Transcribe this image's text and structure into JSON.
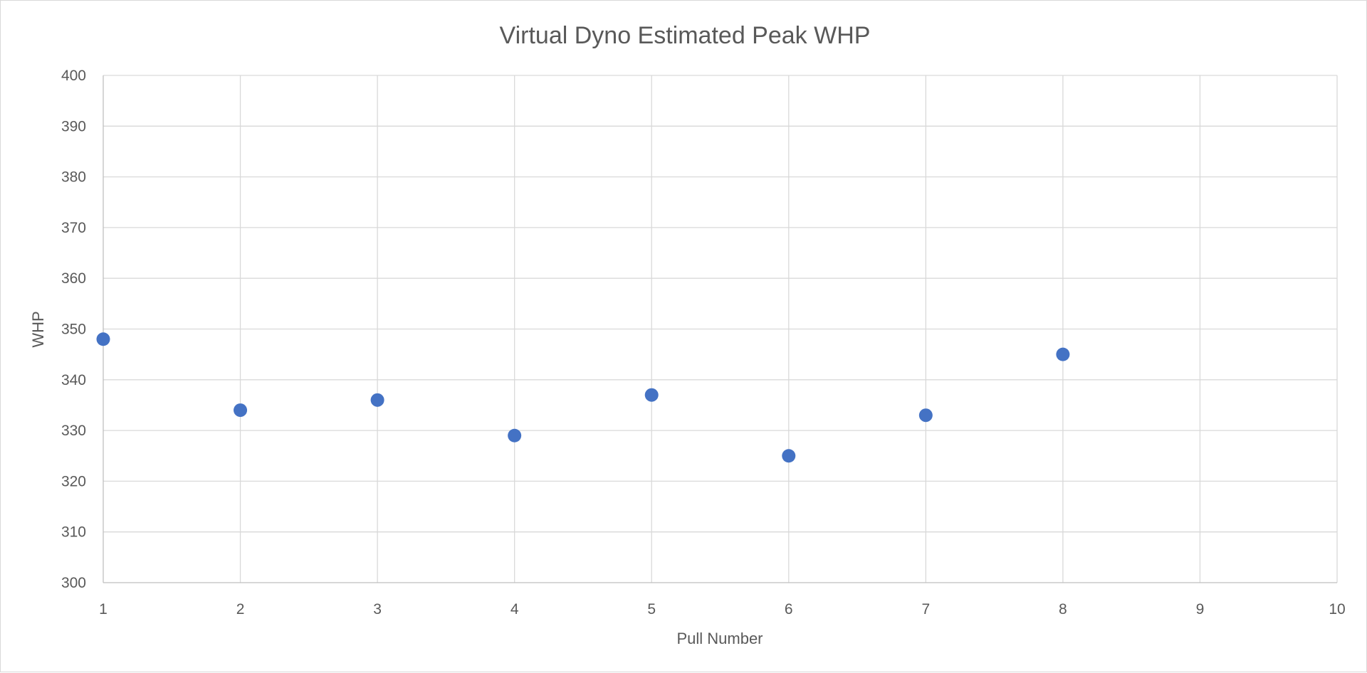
{
  "chart_data": {
    "type": "scatter",
    "title": "Virtual Dyno Estimated Peak WHP",
    "xlabel": "Pull Number",
    "ylabel": "WHP",
    "xlim": [
      1,
      10
    ],
    "ylim": [
      300,
      400
    ],
    "x_ticks": [
      1,
      2,
      3,
      4,
      5,
      6,
      7,
      8,
      9,
      10
    ],
    "y_ticks": [
      300,
      310,
      320,
      330,
      340,
      350,
      360,
      370,
      380,
      390,
      400
    ],
    "grid": true,
    "legend": "none",
    "series": [
      {
        "color": "#4472c4",
        "x": [
          1,
          2,
          3,
          4,
          5,
          6,
          7,
          8
        ],
        "y": [
          348,
          334,
          336,
          329,
          337,
          325,
          333,
          345
        ]
      }
    ]
  }
}
